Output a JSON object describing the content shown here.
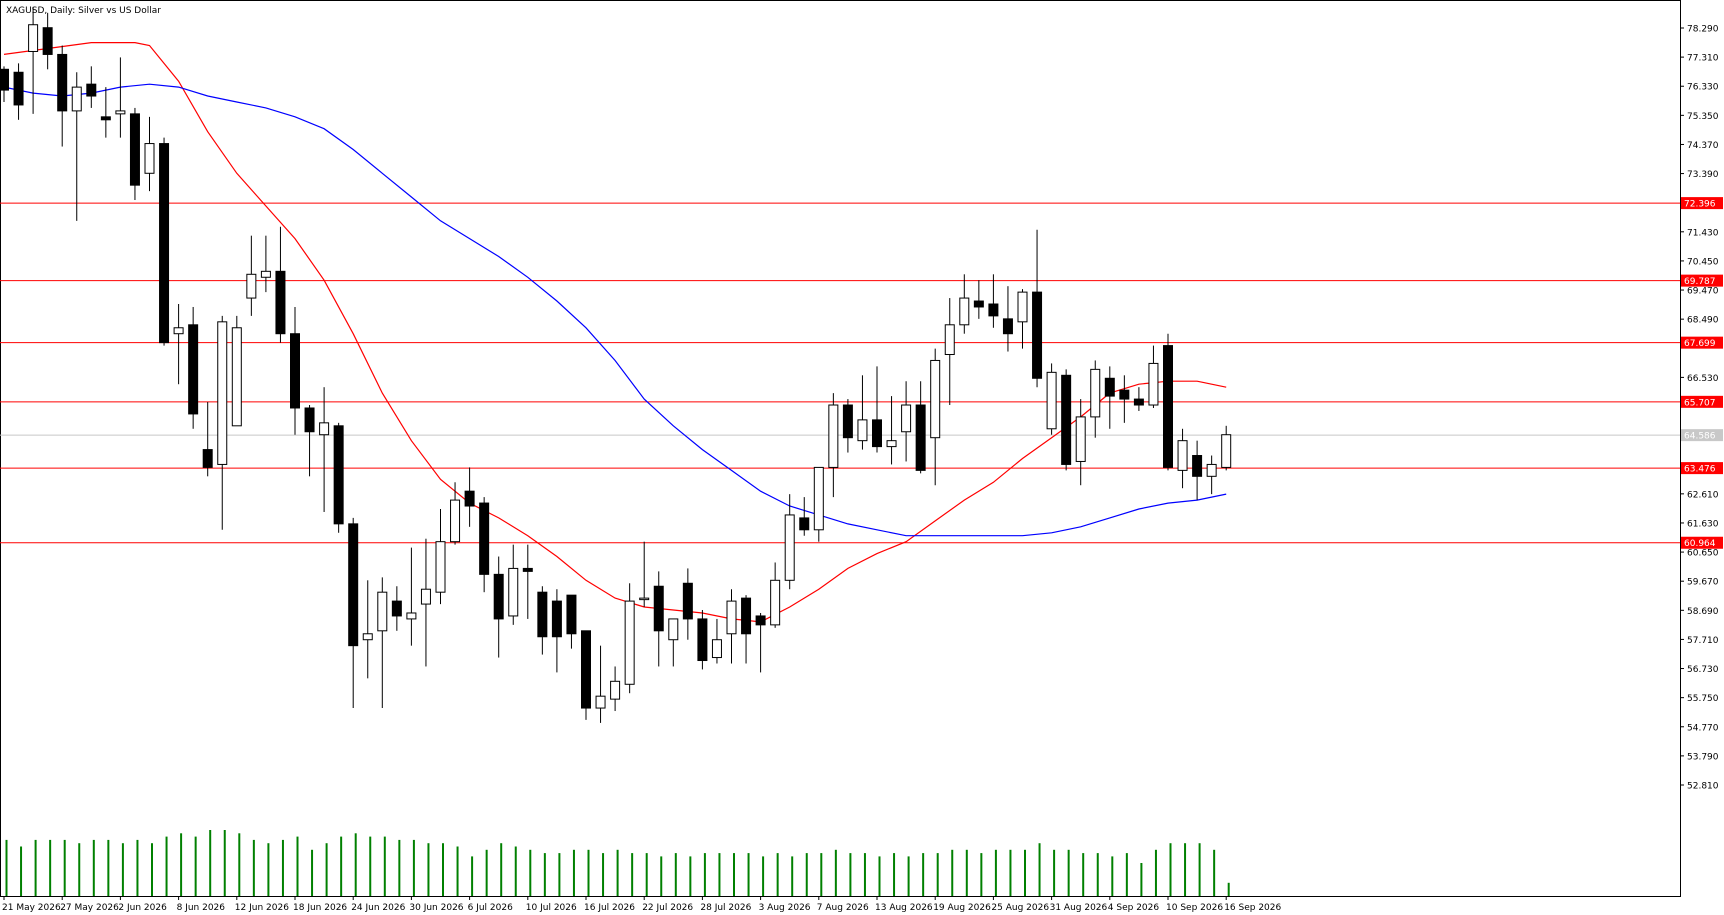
{
  "title": "XAGUSD, Daily:  Silver vs US Dollar",
  "current_price": "64.586",
  "colors": {
    "background": "#ffffff",
    "bull_body": "#ffffff",
    "bear_body": "#000000",
    "level_line": "#ff0000",
    "ma_fast": "#ff0000",
    "ma_slow": "#0000ff",
    "volume": "#008000",
    "current_price_line": "#c8c8c8"
  },
  "chart_data": {
    "type": "candlestick",
    "symbol": "XAGUSD",
    "timeframe": "Daily",
    "ylim": [
      51.8,
      79.3
    ],
    "price_ticks": [
      "78.290",
      "77.310",
      "76.330",
      "75.350",
      "74.370",
      "73.390",
      "71.430",
      "70.450",
      "69.470",
      "68.490",
      "66.530",
      "62.610",
      "61.630",
      "60.650",
      "59.670",
      "58.690",
      "57.710",
      "56.730",
      "55.750",
      "54.770",
      "53.790",
      "52.810"
    ],
    "date_labels": [
      {
        "i": 0,
        "label": "21 May 2026"
      },
      {
        "i": 4,
        "label": "27 May 2026"
      },
      {
        "i": 8,
        "label": "2 Jun 2026"
      },
      {
        "i": 12,
        "label": "8 Jun 2026"
      },
      {
        "i": 16,
        "label": "12 Jun 2026"
      },
      {
        "i": 20,
        "label": "18 Jun 2026"
      },
      {
        "i": 24,
        "label": "24 Jun 2026"
      },
      {
        "i": 28,
        "label": "30 Jun 2026"
      },
      {
        "i": 32,
        "label": "6 Jul 2026"
      },
      {
        "i": 36,
        "label": "10 Jul 2026"
      },
      {
        "i": 40,
        "label": "16 Jul 2026"
      },
      {
        "i": 44,
        "label": "22 Jul 2026"
      },
      {
        "i": 48,
        "label": "28 Jul 2026"
      },
      {
        "i": 52,
        "label": "3 Aug 2026"
      },
      {
        "i": 56,
        "label": "7 Aug 2026"
      },
      {
        "i": 60,
        "label": "13 Aug 2026"
      },
      {
        "i": 64,
        "label": "19 Aug 2026"
      },
      {
        "i": 68,
        "label": "25 Aug 2026"
      },
      {
        "i": 72,
        "label": "31 Aug 2026"
      },
      {
        "i": 76,
        "label": "4 Sep 2026"
      },
      {
        "i": 80,
        "label": "10 Sep 2026"
      },
      {
        "i": 84,
        "label": "16 Sep 2026"
      }
    ],
    "levels": [
      {
        "price": 72.396,
        "label": "72.396"
      },
      {
        "price": 69.787,
        "label": "69.787"
      },
      {
        "price": 67.699,
        "label": "67.699"
      },
      {
        "price": 65.707,
        "label": "65.707"
      },
      {
        "price": 63.476,
        "label": "63.476"
      },
      {
        "price": 60.964,
        "label": "60.964"
      }
    ],
    "candles": [
      [
        76.9,
        77.0,
        75.8,
        76.2
      ],
      [
        76.8,
        77.1,
        75.2,
        75.7
      ],
      [
        77.5,
        79.0,
        75.4,
        78.4
      ],
      [
        78.3,
        78.8,
        76.9,
        77.4
      ],
      [
        77.4,
        77.7,
        74.3,
        75.5
      ],
      [
        75.5,
        76.8,
        71.8,
        76.3
      ],
      [
        76.4,
        77.0,
        75.6,
        76.0
      ],
      [
        75.3,
        76.3,
        74.6,
        75.2
      ],
      [
        75.4,
        77.3,
        74.6,
        75.5
      ],
      [
        75.4,
        75.6,
        72.5,
        73.0
      ],
      [
        73.4,
        75.3,
        72.8,
        74.4
      ],
      [
        74.4,
        74.6,
        67.6,
        67.7
      ],
      [
        68.0,
        69.0,
        66.3,
        68.2
      ],
      [
        68.3,
        68.9,
        64.8,
        65.3
      ],
      [
        64.1,
        65.7,
        63.2,
        63.5
      ],
      [
        63.6,
        68.6,
        61.4,
        68.4
      ],
      [
        64.9,
        68.6,
        64.9,
        68.2
      ],
      [
        69.2,
        71.3,
        68.6,
        70.0
      ],
      [
        69.9,
        71.3,
        69.4,
        70.1
      ],
      [
        70.1,
        71.6,
        67.7,
        68.0
      ],
      [
        68.0,
        68.9,
        64.6,
        65.5
      ],
      [
        65.5,
        65.6,
        63.2,
        64.7
      ],
      [
        64.6,
        66.2,
        62.0,
        65.0
      ],
      [
        64.9,
        65.0,
        61.3,
        61.6
      ],
      [
        61.6,
        61.8,
        55.4,
        57.5
      ],
      [
        57.7,
        59.7,
        56.4,
        57.9
      ],
      [
        58.0,
        59.8,
        55.4,
        59.3
      ],
      [
        59.0,
        59.5,
        58.0,
        58.5
      ],
      [
        58.4,
        60.8,
        57.5,
        58.6
      ],
      [
        58.9,
        61.1,
        56.8,
        59.4
      ],
      [
        59.3,
        62.1,
        58.9,
        61.0
      ],
      [
        61.0,
        63.0,
        60.9,
        62.4
      ],
      [
        62.7,
        63.5,
        61.5,
        62.2
      ],
      [
        62.3,
        62.5,
        59.3,
        59.9
      ],
      [
        59.9,
        60.5,
        57.1,
        58.4
      ],
      [
        58.5,
        60.9,
        58.2,
        60.1
      ],
      [
        60.1,
        60.9,
        58.4,
        60.0
      ],
      [
        59.3,
        59.5,
        57.2,
        57.8
      ],
      [
        59.0,
        59.4,
        56.6,
        57.8
      ],
      [
        59.2,
        59.2,
        57.4,
        57.9
      ],
      [
        58.0,
        58.0,
        55.0,
        55.4
      ],
      [
        55.4,
        57.5,
        54.9,
        55.8
      ],
      [
        55.7,
        56.8,
        55.3,
        56.3
      ],
      [
        56.2,
        59.6,
        55.9,
        59.0
      ],
      [
        59.1,
        61.0,
        58.8,
        59.1
      ],
      [
        59.5,
        60.0,
        56.8,
        58.0
      ],
      [
        57.7,
        58.4,
        56.8,
        58.4
      ],
      [
        59.6,
        60.1,
        57.7,
        58.4
      ],
      [
        58.4,
        58.7,
        56.7,
        57.0
      ],
      [
        57.1,
        58.4,
        56.9,
        57.7
      ],
      [
        57.9,
        59.4,
        56.9,
        59.0
      ],
      [
        59.1,
        59.2,
        56.9,
        57.9
      ],
      [
        58.5,
        58.6,
        56.6,
        58.2
      ],
      [
        58.2,
        60.3,
        58.1,
        59.7
      ],
      [
        59.7,
        62.6,
        59.4,
        61.9
      ],
      [
        61.8,
        62.5,
        61.2,
        61.4
      ],
      [
        61.4,
        63.5,
        61.0,
        63.5
      ],
      [
        63.5,
        66.0,
        62.5,
        65.6
      ],
      [
        65.6,
        65.8,
        64.0,
        64.5
      ],
      [
        64.4,
        66.6,
        64.1,
        65.1
      ],
      [
        65.1,
        66.9,
        64.0,
        64.2
      ],
      [
        64.2,
        65.9,
        63.6,
        64.4
      ],
      [
        64.7,
        66.4,
        63.7,
        65.6
      ],
      [
        65.6,
        66.4,
        63.3,
        63.4
      ],
      [
        64.5,
        67.5,
        62.9,
        67.1
      ],
      [
        67.3,
        69.2,
        65.6,
        68.3
      ],
      [
        68.3,
        70.0,
        68.0,
        69.2
      ],
      [
        69.1,
        69.8,
        68.5,
        68.9
      ],
      [
        69.0,
        70.0,
        68.2,
        68.6
      ],
      [
        68.5,
        69.6,
        67.4,
        68.0
      ],
      [
        68.4,
        69.5,
        67.5,
        69.4
      ],
      [
        69.4,
        71.5,
        66.2,
        66.5
      ],
      [
        64.8,
        67.0,
        64.6,
        66.7
      ],
      [
        66.6,
        66.8,
        63.4,
        63.6
      ],
      [
        63.7,
        65.8,
        62.9,
        65.2
      ],
      [
        65.2,
        67.1,
        64.5,
        66.8
      ],
      [
        66.5,
        66.9,
        64.8,
        65.9
      ],
      [
        66.1,
        66.6,
        65.0,
        65.8
      ],
      [
        65.8,
        66.2,
        65.4,
        65.6
      ],
      [
        65.6,
        67.6,
        65.5,
        67.0
      ],
      [
        67.6,
        68.0,
        63.4,
        63.5
      ],
      [
        63.4,
        64.8,
        62.8,
        64.4
      ],
      [
        63.9,
        64.4,
        62.4,
        63.2
      ],
      [
        63.2,
        63.9,
        62.6,
        63.6
      ],
      [
        63.5,
        64.9,
        63.4,
        64.6
      ]
    ],
    "volume": [
      17,
      15,
      17,
      17,
      17,
      16,
      17,
      17,
      16,
      17,
      16,
      18,
      19,
      18,
      20,
      20,
      19,
      17,
      16,
      17,
      18,
      14,
      16,
      18,
      19,
      18,
      18,
      17,
      17,
      16,
      16,
      15,
      12,
      14,
      16,
      15,
      14,
      13,
      13,
      14,
      14,
      13,
      14,
      13,
      13,
      12,
      13,
      12,
      13,
      13,
      13,
      13,
      12,
      13,
      12,
      13,
      13,
      14,
      13,
      13,
      12,
      13,
      12,
      13,
      13,
      14,
      14,
      13,
      14,
      14,
      14,
      16,
      14,
      14,
      13,
      13,
      12,
      13,
      10,
      14,
      16,
      16,
      16,
      14,
      4
    ],
    "ma_fast": [
      [
        0,
        77.4
      ],
      [
        3,
        77.6
      ],
      [
        6,
        77.8
      ],
      [
        9,
        77.8
      ],
      [
        10,
        77.7
      ],
      [
        12,
        76.5
      ],
      [
        14,
        74.8
      ],
      [
        16,
        73.4
      ],
      [
        18,
        72.3
      ],
      [
        20,
        71.2
      ],
      [
        22,
        69.8
      ],
      [
        24,
        68.0
      ],
      [
        26,
        66.0
      ],
      [
        28,
        64.4
      ],
      [
        30,
        63.1
      ],
      [
        32,
        62.3
      ],
      [
        34,
        61.8
      ],
      [
        36,
        61.2
      ],
      [
        38,
        60.5
      ],
      [
        40,
        59.7
      ],
      [
        42,
        59.1
      ],
      [
        44,
        58.8
      ],
      [
        46,
        58.7
      ],
      [
        48,
        58.6
      ],
      [
        50,
        58.4
      ],
      [
        52,
        58.3
      ],
      [
        54,
        58.8
      ],
      [
        56,
        59.4
      ],
      [
        58,
        60.1
      ],
      [
        60,
        60.6
      ],
      [
        62,
        61.0
      ],
      [
        64,
        61.7
      ],
      [
        66,
        62.4
      ],
      [
        68,
        63.0
      ],
      [
        70,
        63.8
      ],
      [
        72,
        64.5
      ],
      [
        74,
        65.2
      ],
      [
        76,
        66.0
      ],
      [
        78,
        66.3
      ],
      [
        80,
        66.4
      ],
      [
        82,
        66.4
      ],
      [
        84,
        66.2
      ]
    ],
    "ma_slow": [
      [
        0,
        76.3
      ],
      [
        2,
        76.1
      ],
      [
        4,
        76.0
      ],
      [
        6,
        76.1
      ],
      [
        8,
        76.3
      ],
      [
        10,
        76.4
      ],
      [
        12,
        76.3
      ],
      [
        14,
        76.0
      ],
      [
        16,
        75.8
      ],
      [
        18,
        75.6
      ],
      [
        20,
        75.3
      ],
      [
        22,
        74.9
      ],
      [
        24,
        74.2
      ],
      [
        26,
        73.4
      ],
      [
        28,
        72.6
      ],
      [
        30,
        71.8
      ],
      [
        32,
        71.2
      ],
      [
        34,
        70.6
      ],
      [
        36,
        69.9
      ],
      [
        38,
        69.1
      ],
      [
        40,
        68.2
      ],
      [
        42,
        67.1
      ],
      [
        44,
        65.8
      ],
      [
        46,
        64.9
      ],
      [
        48,
        64.1
      ],
      [
        50,
        63.4
      ],
      [
        52,
        62.7
      ],
      [
        54,
        62.2
      ],
      [
        56,
        61.9
      ],
      [
        58,
        61.6
      ],
      [
        60,
        61.4
      ],
      [
        62,
        61.2
      ],
      [
        64,
        61.2
      ],
      [
        66,
        61.2
      ],
      [
        68,
        61.2
      ],
      [
        70,
        61.2
      ],
      [
        72,
        61.3
      ],
      [
        74,
        61.5
      ],
      [
        76,
        61.8
      ],
      [
        78,
        62.1
      ],
      [
        80,
        62.3
      ],
      [
        82,
        62.4
      ],
      [
        84,
        62.6
      ]
    ]
  }
}
